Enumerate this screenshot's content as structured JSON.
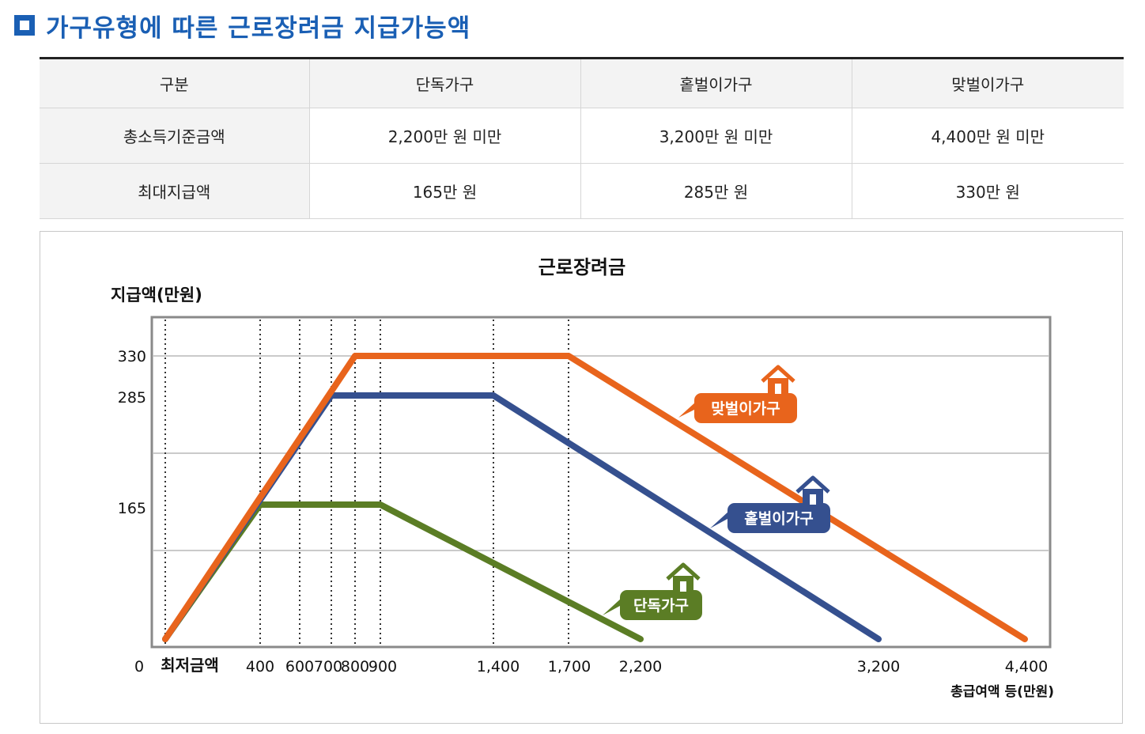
{
  "page_title": "가구유형에 따른 근로장려금 지급가능액",
  "table": {
    "headers": [
      "구분",
      "단독가구",
      "홑벌이가구",
      "맞벌이가구"
    ],
    "rows": [
      [
        "총소득기준금액",
        "2,200만 원 미만",
        "3,200만 원 미만",
        "4,400만 원 미만"
      ],
      [
        "최대지급액",
        "165만 원",
        "285만 원",
        "330만 원"
      ]
    ]
  },
  "colors": {
    "title": "#1a5fb4",
    "single": "#5b7d25",
    "one_earner": "#35508f",
    "dual_earner": "#e8641c"
  },
  "chart_data": {
    "type": "line",
    "title": "근로장려금",
    "ylabel": "지급액(만원)",
    "xlabel": "총급여액 등(만원)",
    "y_ticks": [
      "330",
      "285",
      "165",
      "0"
    ],
    "x_ticks": [
      "최저금액",
      "400",
      "600",
      "700",
      "800",
      "900",
      "1,400",
      "1,700",
      "2,200",
      "3,200",
      "4,400"
    ],
    "grid": true,
    "series": [
      {
        "name": "맞벌이가구",
        "icon": "house-icon",
        "points": [
          [
            0,
            0
          ],
          [
            800,
            330
          ],
          [
            1700,
            330
          ],
          [
            4400,
            0
          ]
        ]
      },
      {
        "name": "홑벌이가구",
        "icon": "house-icon",
        "points": [
          [
            0,
            0
          ],
          [
            700,
            285
          ],
          [
            1400,
            285
          ],
          [
            3200,
            0
          ]
        ]
      },
      {
        "name": "단독가구",
        "icon": "house-icon",
        "points": [
          [
            0,
            0
          ],
          [
            400,
            165
          ],
          [
            900,
            165
          ],
          [
            2200,
            0
          ]
        ]
      }
    ]
  }
}
